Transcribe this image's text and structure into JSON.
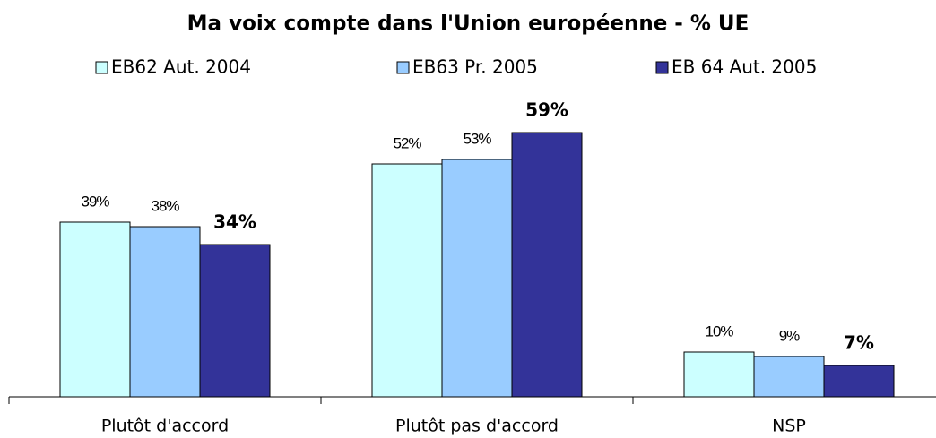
{
  "chart_data": {
    "type": "bar",
    "title": "Ma voix compte dans l'Union européenne - % UE",
    "categories": [
      "Plutôt d'accord",
      "Plutôt pas d'accord",
      "NSP"
    ],
    "series": [
      {
        "name": "EB62 Aut. 2004",
        "color": "#ccffff",
        "values": [
          39,
          52,
          10
        ],
        "value_labels": [
          "39%",
          "52%",
          "10%"
        ]
      },
      {
        "name": "EB63 Pr. 2005",
        "color": "#99ccff",
        "values": [
          38,
          53,
          9
        ],
        "value_labels": [
          "38%",
          "53%",
          "9%"
        ]
      },
      {
        "name": "EB 64 Aut. 2005",
        "color": "#333399",
        "values": [
          34,
          59,
          7
        ],
        "value_labels": [
          "34%",
          "59%",
          "7%"
        ]
      }
    ],
    "ylim": [
      0,
      60
    ]
  }
}
